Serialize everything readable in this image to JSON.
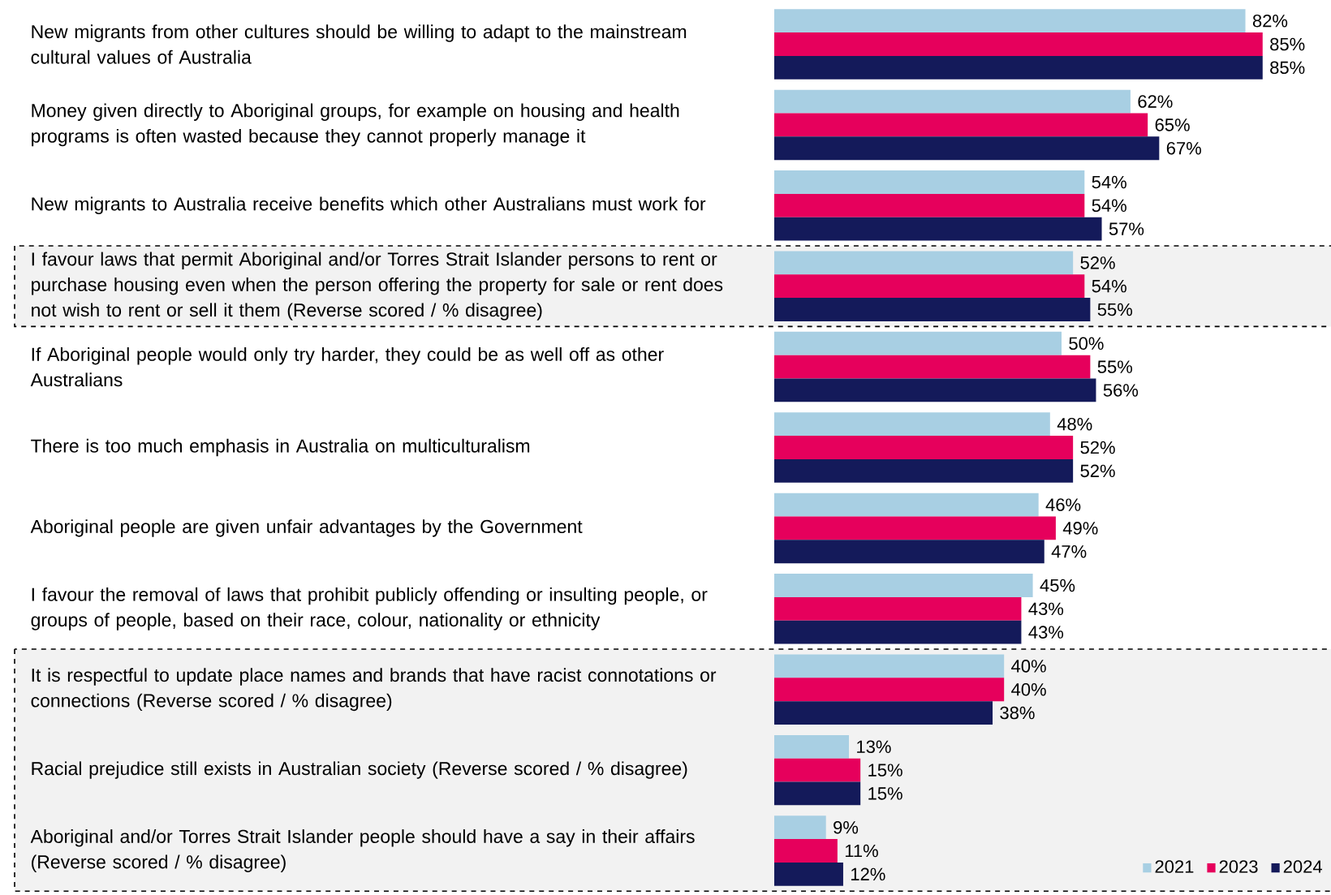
{
  "chart_data": {
    "type": "bar",
    "orientation": "horizontal",
    "data_labels": true,
    "legend": "bottom right",
    "categories": [
      "New migrants from other cultures should be willing to adapt to the mainstream cultural values of Australia",
      "Money given directly to Aboriginal groups, for example on housing and health programs is often wasted because they cannot properly manage it",
      "New migrants to Australia receive benefits which other Australians must work for",
      "I favour laws that permit Aboriginal and/or Torres Strait Islander persons to rent or purchase housing even when the person offering the property for sale or rent does not wish to rent or sell it them (Reverse scored / % disagree)",
      "If Aboriginal people would only try harder, they could be as well off as other Australians",
      "There is too much emphasis in Australia on multiculturalism",
      "Aboriginal people are given unfair advantages by the Government",
      "I favour the removal of laws that prohibit publicly offending or insulting people, or groups of people, based on their race, colour, nationality or ethnicity",
      "It is respectful to update place names and brands that have racist connotations or connections (Reverse scored / % disagree)",
      "Racial prejudice still exists in Australian society (Reverse scored / % disagree)",
      "Aboriginal and/or Torres Strait Islander people should have a say in their affairs (Reverse scored / % disagree)"
    ],
    "series": [
      {
        "name": "2021",
        "color": "#a8cfe3",
        "values": [
          82,
          62,
          54,
          52,
          50,
          48,
          46,
          45,
          40,
          13,
          9
        ],
        "value_labels": [
          "82%",
          "62%",
          "54%",
          "52%",
          "50%",
          "48%",
          "46%",
          "45%",
          "40%",
          "13%",
          "9%"
        ]
      },
      {
        "name": "2023",
        "color": "#e6005c",
        "values": [
          85,
          65,
          54,
          54,
          55,
          52,
          49,
          43,
          40,
          15,
          11
        ],
        "value_labels": [
          "85%",
          "65%",
          "54%",
          "54%",
          "55%",
          "52%",
          "49%",
          "43%",
          "40%",
          "15%",
          "11%"
        ]
      },
      {
        "name": "2024",
        "color": "#141a5a",
        "values": [
          85,
          67,
          57,
          55,
          56,
          52,
          47,
          43,
          38,
          15,
          12
        ],
        "value_labels": [
          "85%",
          "67%",
          "57%",
          "55%",
          "56%",
          "52%",
          "47%",
          "43%",
          "38%",
          "15%",
          "12%"
        ]
      }
    ],
    "bands": [
      {
        "axis": "y",
        "from": "I favour laws that permit Aboriginal and/or Torres Strait Islander persons to rent or purchase housing even when the person offering the property for sale or rent does not wish to rent or sell it them (Reverse scored / % disagree)",
        "to": "I favour laws that permit Aboriginal and/or Torres Strait Islander persons to rent or purchase housing even when the person offering the property for sale or rent does not wish to rent or sell it them (Reverse scored / % disagree)",
        "color": "#f2f2f2"
      },
      {
        "axis": "y",
        "from": "It is respectful to update place names and brands that have racist connotations or connections (Reverse scored / % disagree)",
        "to": "Aboriginal and/or Torres Strait Islander people should have a say in their affairs (Reverse scored / % disagree)",
        "color": "#f2f2f2"
      }
    ]
  }
}
